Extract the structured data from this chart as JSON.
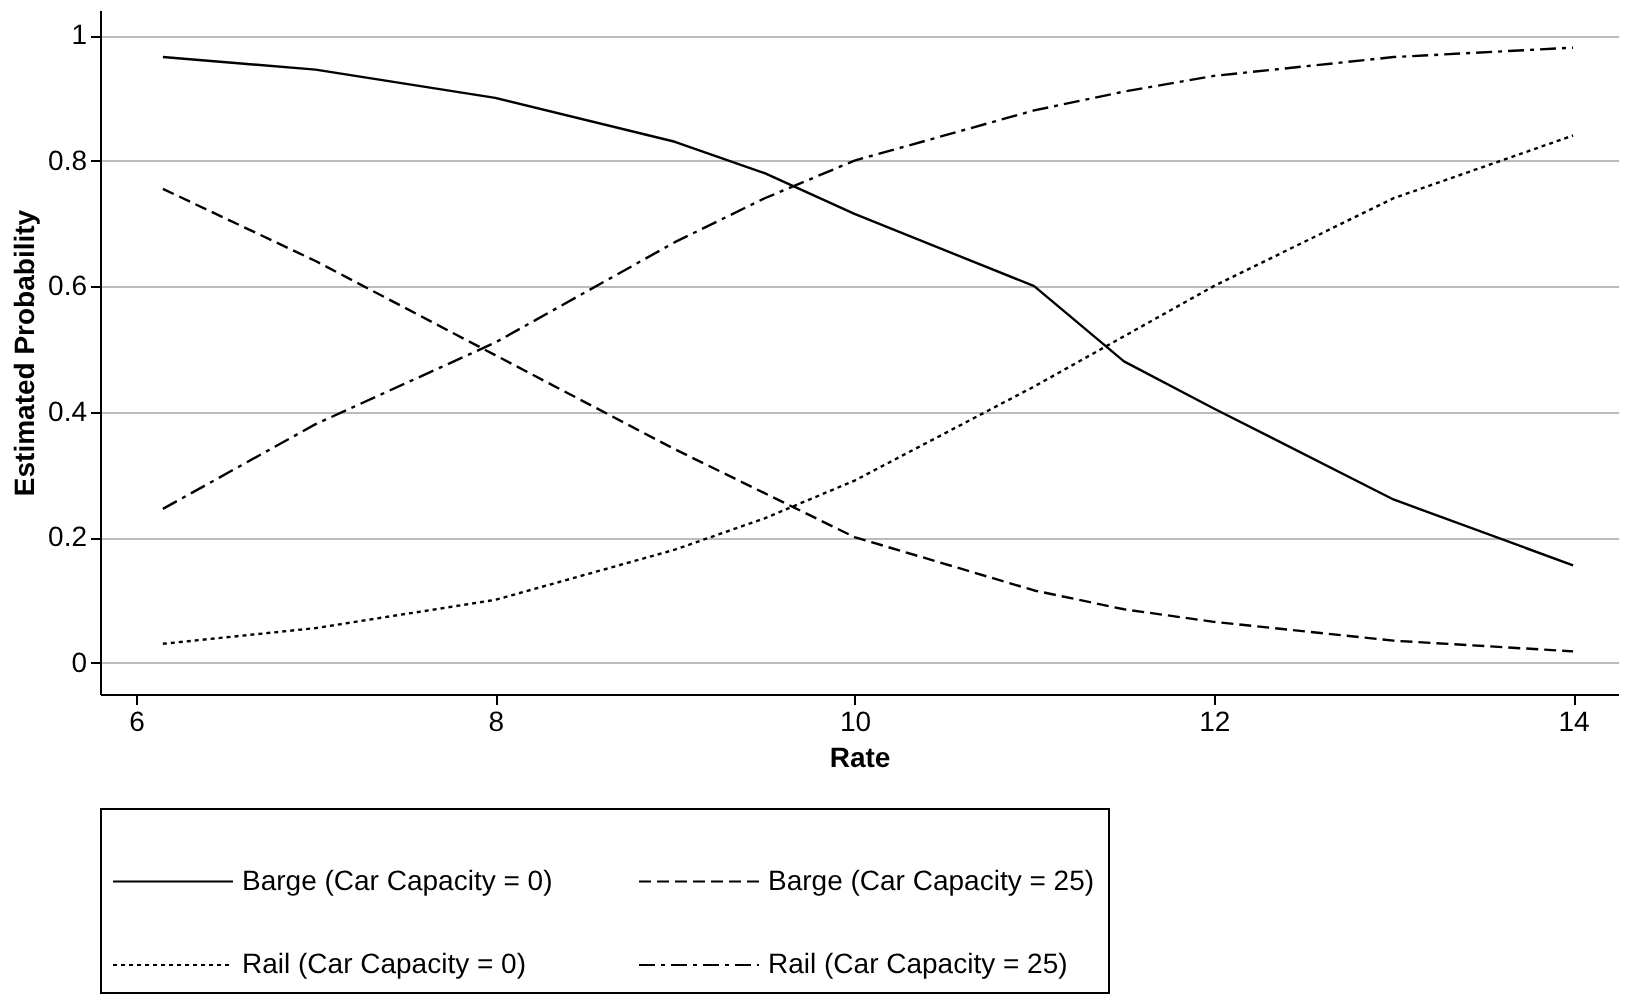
{
  "chart_data": {
    "type": "line",
    "xlabel": "Rate",
    "ylabel": "Estimated Probability",
    "xlim": [
      5.8,
      14.25
    ],
    "ylim": [
      -0.05,
      1.04
    ],
    "xticks": [
      6,
      8,
      10,
      12,
      14
    ],
    "yticks": [
      0,
      0.2,
      0.4,
      0.6,
      0.8,
      1
    ],
    "grid": "y",
    "legend": "bottom",
    "marker": "none",
    "x": [
      6.15,
      7,
      8,
      9,
      9.5,
      10,
      11,
      11.5,
      12,
      13,
      14
    ],
    "series": [
      {
        "name": "Barge (Car Capacity = 0)",
        "color": "#000000",
        "line_style": "solid",
        "values": [
          0.965,
          0.945,
          0.9,
          0.83,
          0.78,
          0.715,
          0.6,
          0.48,
          0.405,
          0.26,
          0.155
        ]
      },
      {
        "name": "Barge (Car Capacity = 25)",
        "color": "#000000",
        "line_style": "dashed",
        "values": [
          0.755,
          0.64,
          0.49,
          0.34,
          0.27,
          0.2,
          0.115,
          0.085,
          0.065,
          0.035,
          0.018
        ]
      },
      {
        "name": "Rail (Car Capacity = 0)",
        "color": "#000000",
        "line_style": "dotted",
        "values": [
          0.03,
          0.055,
          0.1,
          0.18,
          0.23,
          0.29,
          0.44,
          0.52,
          0.6,
          0.74,
          0.84
        ]
      },
      {
        "name": "Rail (Car Capacity = 25)",
        "color": "#000000",
        "line_style": "dashdot",
        "values": [
          0.245,
          0.38,
          0.51,
          0.67,
          0.74,
          0.8,
          0.88,
          0.91,
          0.935,
          0.965,
          0.98
        ]
      }
    ]
  }
}
